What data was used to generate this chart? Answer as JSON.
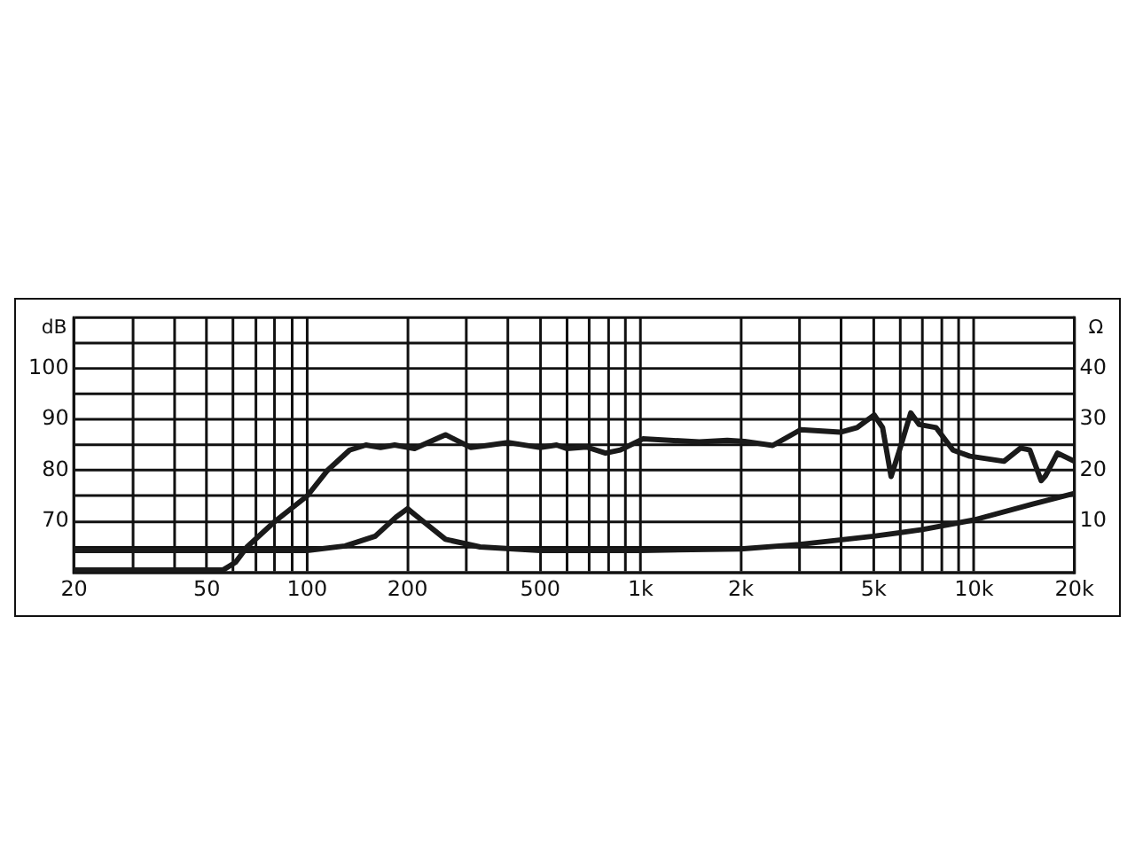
{
  "chart_data": {
    "type": "line",
    "ylabel": "dB",
    "y2label": "Ω",
    "grid": true,
    "legend": false,
    "log": "x",
    "marker": "none",
    "line_style": "solid",
    "xlim": [
      20,
      20000
    ],
    "xticks": [
      20,
      {
        "value": 30,
        "label": null
      },
      {
        "value": 40,
        "label": null
      },
      50,
      {
        "value": 60,
        "label": null
      },
      {
        "value": 70,
        "label": null
      },
      {
        "value": 80,
        "label": null
      },
      {
        "value": 90,
        "label": null
      },
      100,
      200,
      {
        "value": 300,
        "label": null
      },
      {
        "value": 400,
        "label": null
      },
      500,
      {
        "value": 600,
        "label": null
      },
      {
        "value": 700,
        "label": null
      },
      {
        "value": 800,
        "label": null
      },
      {
        "value": 900,
        "label": null
      },
      {
        "value": 1000,
        "label": "1k"
      },
      {
        "value": 2000,
        "label": "2k"
      },
      {
        "value": 3000,
        "label": null
      },
      {
        "value": 4000,
        "label": null
      },
      {
        "value": 5000,
        "label": "5k"
      },
      {
        "value": 6000,
        "label": null
      },
      {
        "value": 7000,
        "label": null
      },
      {
        "value": 8000,
        "label": null
      },
      {
        "value": 9000,
        "label": null
      },
      {
        "value": 10000,
        "label": "10k"
      },
      {
        "value": 20000,
        "label": "20k"
      }
    ],
    "ylim": [
      60,
      110
    ],
    "yticks": [
      {
        "value": 60,
        "label": null
      },
      {
        "value": 65,
        "label": null
      },
      70,
      {
        "value": 75,
        "label": null
      },
      80,
      {
        "value": 85,
        "label": null
      },
      90,
      {
        "value": 95,
        "label": null
      },
      100,
      {
        "value": 105,
        "label": null
      },
      {
        "value": 110,
        "label": null
      }
    ],
    "y2lim": [
      0,
      50
    ],
    "y2ticks": [
      10,
      20,
      30,
      40
    ],
    "series": [
      {
        "color": "#1a1a1a",
        "x": [
          20,
          56,
          61,
          66,
          80,
          100,
          115,
          134,
          150,
          166,
          183,
          210,
          250,
          260,
          310,
          355,
          400,
          500,
          560,
          600,
          688,
          785,
          869,
          1016,
          1500,
          1820,
          2050,
          2490,
          3020,
          3970,
          4460,
          5020,
          5320,
          5640,
          5980,
          6460,
          6850,
          7700,
          8650,
          9720,
          12300,
          13800,
          14700,
          15900,
          16400,
          17800,
          20000
        ],
        "values": [
          60.5,
          60.5,
          62,
          65,
          70,
          75,
          80,
          84,
          85,
          84.5,
          85,
          84.3,
          86.5,
          87,
          84.5,
          85,
          85.5,
          84.5,
          85,
          84.3,
          84.6,
          83.4,
          84,
          86.2,
          85.6,
          85.9,
          85.7,
          84.9,
          88,
          87.5,
          88.4,
          90.9,
          88.4,
          78.8,
          84,
          91.3,
          89,
          88.4,
          84,
          82.8,
          81.8,
          84.4,
          84,
          78,
          79,
          83.4,
          81.8
        ]
      },
      {
        "color": "#1a1a1a",
        "axis": "y2",
        "x": [
          20,
          100,
          130,
          160,
          185,
          200,
          220,
          260,
          330,
          500,
          1000,
          2000,
          3000,
          5000,
          7000,
          10000,
          15000,
          20000
        ],
        "values": [
          4.3,
          4.3,
          5.2,
          7.1,
          10.9,
          12.5,
          10.3,
          6.5,
          5,
          4.3,
          4.3,
          4.6,
          5.5,
          7.1,
          8.4,
          10.3,
          13.4,
          15.5
        ]
      }
    ]
  }
}
